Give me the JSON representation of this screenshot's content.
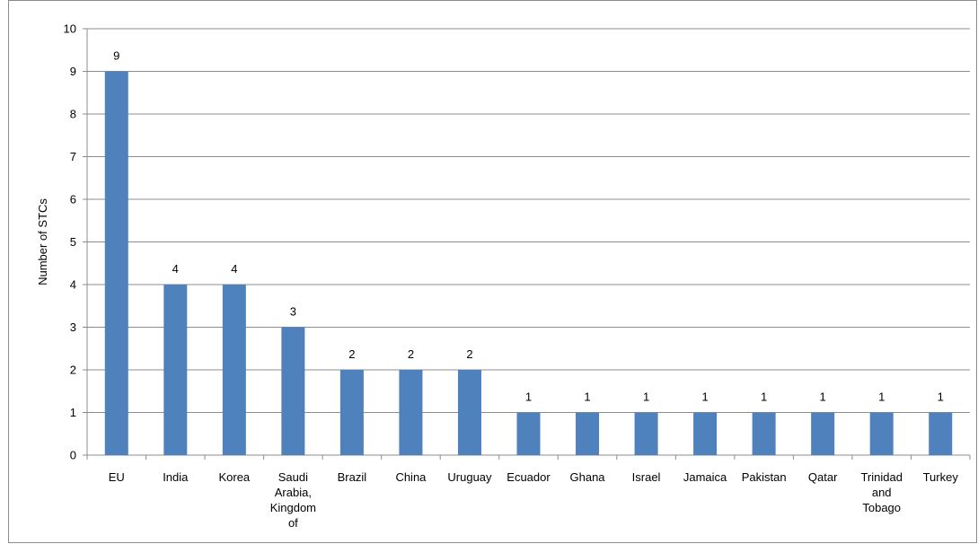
{
  "chart_data": {
    "type": "bar",
    "ylabel": "Number of STCs",
    "xlabel": "",
    "ylim": [
      0,
      10
    ],
    "yticks": [
      0,
      1,
      2,
      3,
      4,
      5,
      6,
      7,
      8,
      9,
      10
    ],
    "grid": true,
    "bar_color": "#4f81bd",
    "categories": [
      [
        "EU"
      ],
      [
        "India"
      ],
      [
        "Korea"
      ],
      [
        "Saudi",
        "Arabia,",
        "Kingdom",
        "of"
      ],
      [
        "Brazil"
      ],
      [
        "China"
      ],
      [
        "Uruguay"
      ],
      [
        "Ecuador"
      ],
      [
        "Ghana"
      ],
      [
        "Israel"
      ],
      [
        "Jamaica"
      ],
      [
        "Pakistan"
      ],
      [
        "Qatar"
      ],
      [
        "Trinidad",
        "and",
        "Tobago"
      ],
      [
        "Turkey"
      ]
    ],
    "values": [
      9,
      4,
      4,
      3,
      2,
      2,
      2,
      1,
      1,
      1,
      1,
      1,
      1,
      1,
      1
    ]
  }
}
